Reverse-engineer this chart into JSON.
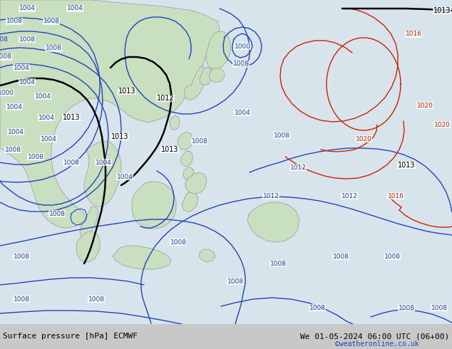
{
  "title_left": "Surface pressure [hPa] ECMWF",
  "title_right": "We 01-05-2024 06:00 UTC (06+00)",
  "credit": "©weatheronline.co.uk",
  "bg_ocean": "#d8e4ec",
  "bg_land": "#c8dfc0",
  "bg_land_edge": "#888888",
  "bottom_bar": "#c8c8c8",
  "blue": "#2244bb",
  "black": "#000000",
  "red": "#cc2200",
  "credit_color": "#2244bb",
  "lw_blue": 1.0,
  "lw_black": 1.8,
  "lw_red": 1.0
}
